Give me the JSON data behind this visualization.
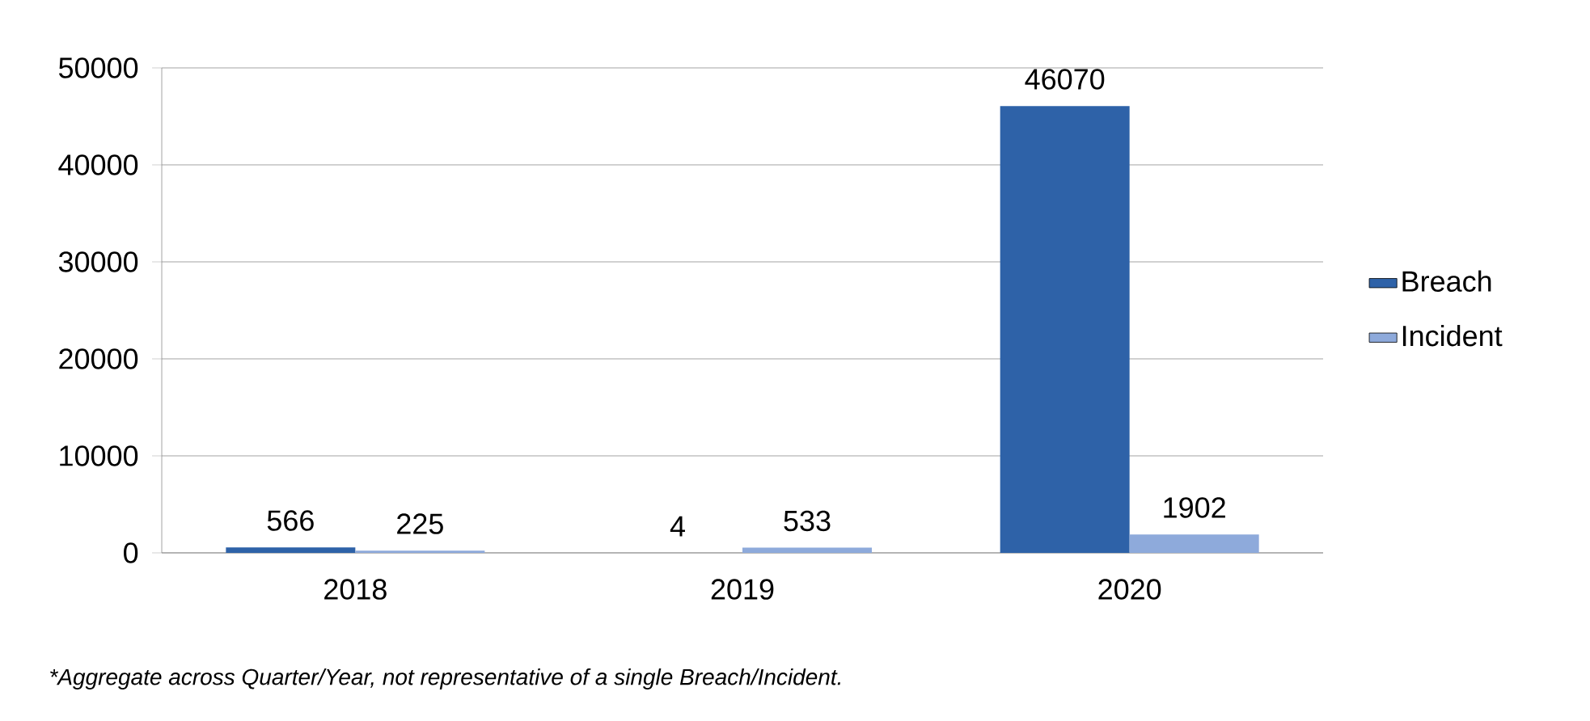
{
  "chart_data": {
    "type": "bar",
    "categories": [
      "2018",
      "2019",
      "2020"
    ],
    "series": [
      {
        "name": "Breach",
        "color": "#2e62a8",
        "values": [
          566,
          4,
          46070
        ]
      },
      {
        "name": "Incident",
        "color": "#8eaadb",
        "values": [
          225,
          533,
          1902
        ]
      }
    ],
    "ylim": [
      0,
      50000
    ],
    "yticks": [
      0,
      10000,
      20000,
      30000,
      40000,
      50000
    ],
    "grid": "y",
    "legend": "right",
    "data_labels": true,
    "annotations": [
      "*Aggregate across Quarter/Year, not representative of a single Breach/Incident."
    ]
  }
}
